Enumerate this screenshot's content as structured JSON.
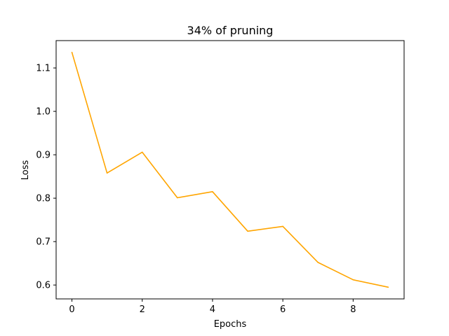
{
  "chart_data": {
    "type": "line",
    "title": "34% of pruning",
    "xlabel": "Epochs",
    "ylabel": "Loss",
    "xlim": [
      -0.45,
      9.45
    ],
    "ylim": [
      0.568,
      1.163
    ],
    "xticks": [
      0,
      2,
      4,
      6,
      8
    ],
    "xtick_labels": [
      "0",
      "2",
      "4",
      "6",
      "8"
    ],
    "yticks": [
      0.6,
      0.7,
      0.8,
      0.9,
      1.0,
      1.1
    ],
    "ytick_labels": [
      "0.6",
      "0.7",
      "0.8",
      "0.9",
      "1.0",
      "1.1"
    ],
    "grid": false,
    "legend": "none",
    "series": [
      {
        "color": "#ffa500",
        "x": [
          0,
          1,
          2,
          3,
          4,
          5,
          6,
          7,
          8,
          9
        ],
        "y": [
          1.136,
          0.858,
          0.906,
          0.801,
          0.815,
          0.724,
          0.735,
          0.652,
          0.612,
          0.595
        ]
      }
    ]
  }
}
